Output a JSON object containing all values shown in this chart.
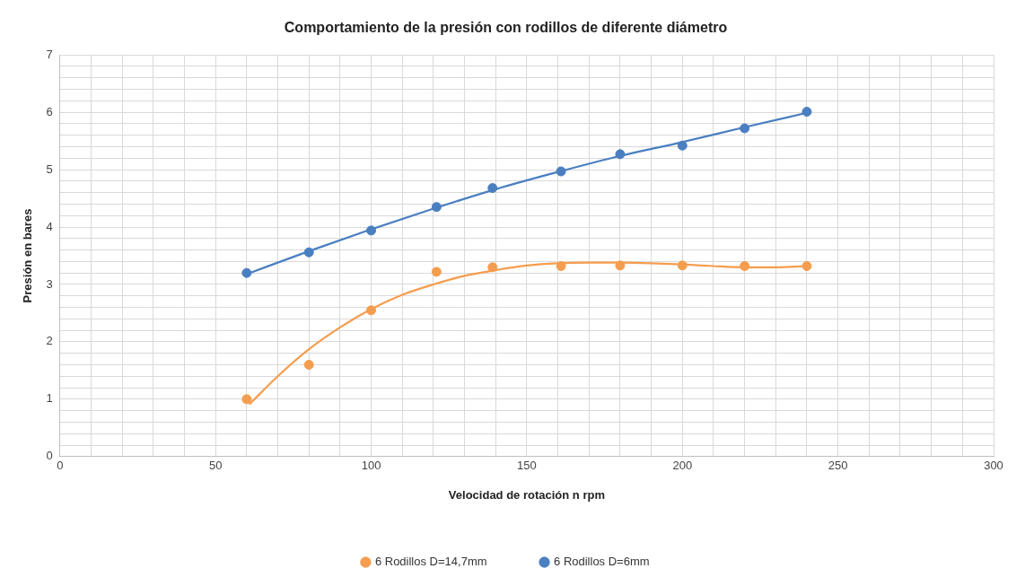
{
  "chart_data": {
    "type": "scatter",
    "title": "Comportamiento de la presión con rodillos de diferente diámetro",
    "xlabel": "Velocidad de rotación n rpm",
    "ylabel": "Presión en bares",
    "xlim": [
      0,
      300
    ],
    "ylim": [
      0,
      7
    ],
    "xticks": [
      0,
      {
        "value": 10,
        "label": null
      },
      {
        "value": 20,
        "label": null
      },
      {
        "value": 30,
        "label": null
      },
      {
        "value": 40,
        "label": null
      },
      50,
      {
        "value": 60,
        "label": null
      },
      {
        "value": 70,
        "label": null
      },
      {
        "value": 80,
        "label": null
      },
      {
        "value": 90,
        "label": null
      },
      100,
      {
        "value": 110,
        "label": null
      },
      {
        "value": 120,
        "label": null
      },
      {
        "value": 130,
        "label": null
      },
      {
        "value": 140,
        "label": null
      },
      150,
      {
        "value": 160,
        "label": null
      },
      {
        "value": 170,
        "label": null
      },
      {
        "value": 180,
        "label": null
      },
      {
        "value": 190,
        "label": null
      },
      200,
      {
        "value": 210,
        "label": null
      },
      {
        "value": 220,
        "label": null
      },
      {
        "value": 230,
        "label": null
      },
      {
        "value": 240,
        "label": null
      },
      250,
      {
        "value": 260,
        "label": null
      },
      {
        "value": 270,
        "label": null
      },
      {
        "value": 280,
        "label": null
      },
      {
        "value": 290,
        "label": null
      },
      300
    ],
    "yticks": [
      0,
      {
        "value": 0.2,
        "label": null
      },
      {
        "value": 0.4,
        "label": null
      },
      {
        "value": 0.6,
        "label": null
      },
      {
        "value": 0.8,
        "label": null
      },
      1,
      {
        "value": 1.2,
        "label": null
      },
      {
        "value": 1.4,
        "label": null
      },
      {
        "value": 1.6,
        "label": null
      },
      {
        "value": 1.8,
        "label": null
      },
      2,
      {
        "value": 2.2,
        "label": null
      },
      {
        "value": 2.4,
        "label": null
      },
      {
        "value": 2.6,
        "label": null
      },
      {
        "value": 2.8,
        "label": null
      },
      3,
      {
        "value": 3.2,
        "label": null
      },
      {
        "value": 3.4,
        "label": null
      },
      {
        "value": 3.6,
        "label": null
      },
      {
        "value": 3.8,
        "label": null
      },
      4,
      {
        "value": 4.2,
        "label": null
      },
      {
        "value": 4.4,
        "label": null
      },
      {
        "value": 4.6,
        "label": null
      },
      {
        "value": 4.8,
        "label": null
      },
      5,
      {
        "value": 5.2,
        "label": null
      },
      {
        "value": 5.4,
        "label": null
      },
      {
        "value": 5.6,
        "label": null
      },
      {
        "value": 5.8,
        "label": null
      },
      6,
      {
        "value": 6.2,
        "label": null
      },
      {
        "value": 6.4,
        "label": null
      },
      {
        "value": 6.6,
        "label": null
      },
      {
        "value": 6.8,
        "label": null
      },
      7
    ],
    "grid": true,
    "legend": "bottom",
    "marker": "circle",
    "series": [
      {
        "name": "6 Rodillos D=14,7mm",
        "color": "#f59d4e",
        "x": [
          60,
          80,
          100,
          121,
          139,
          161,
          180,
          200,
          220,
          240
        ],
        "values": [
          1.0,
          1.6,
          2.55,
          3.22,
          3.3,
          3.32,
          3.33,
          3.33,
          3.32,
          3.32
        ]
      },
      {
        "name": "6 Rodillos D=6mm",
        "color": "#4a7fc1",
        "x": [
          60,
          80,
          100,
          121,
          139,
          161,
          180,
          200,
          220,
          240
        ],
        "values": [
          3.2,
          3.56,
          3.94,
          4.35,
          4.68,
          4.97,
          5.27,
          5.42,
          5.72,
          6.01
        ]
      },
      {
        "type": "line",
        "marker": "none",
        "color": "#f59d4e",
        "x": [
          61,
          70,
          80,
          90,
          100,
          110,
          120,
          130,
          140,
          150,
          160,
          170,
          180,
          190,
          200,
          210,
          220,
          230,
          240
        ],
        "values": [
          0.92,
          1.4,
          1.87,
          2.25,
          2.57,
          2.82,
          3.0,
          3.15,
          3.25,
          3.33,
          3.37,
          3.38,
          3.38,
          3.37,
          3.35,
          3.32,
          3.3,
          3.3,
          3.32
        ]
      },
      {
        "type": "line",
        "marker": "none",
        "color": "#4a7fc1",
        "x": [
          60,
          80,
          100,
          120,
          140,
          160,
          180,
          200,
          220,
          240
        ],
        "values": [
          3.18,
          3.58,
          3.96,
          4.32,
          4.66,
          4.96,
          5.24,
          5.48,
          5.74,
          5.99
        ]
      }
    ]
  }
}
